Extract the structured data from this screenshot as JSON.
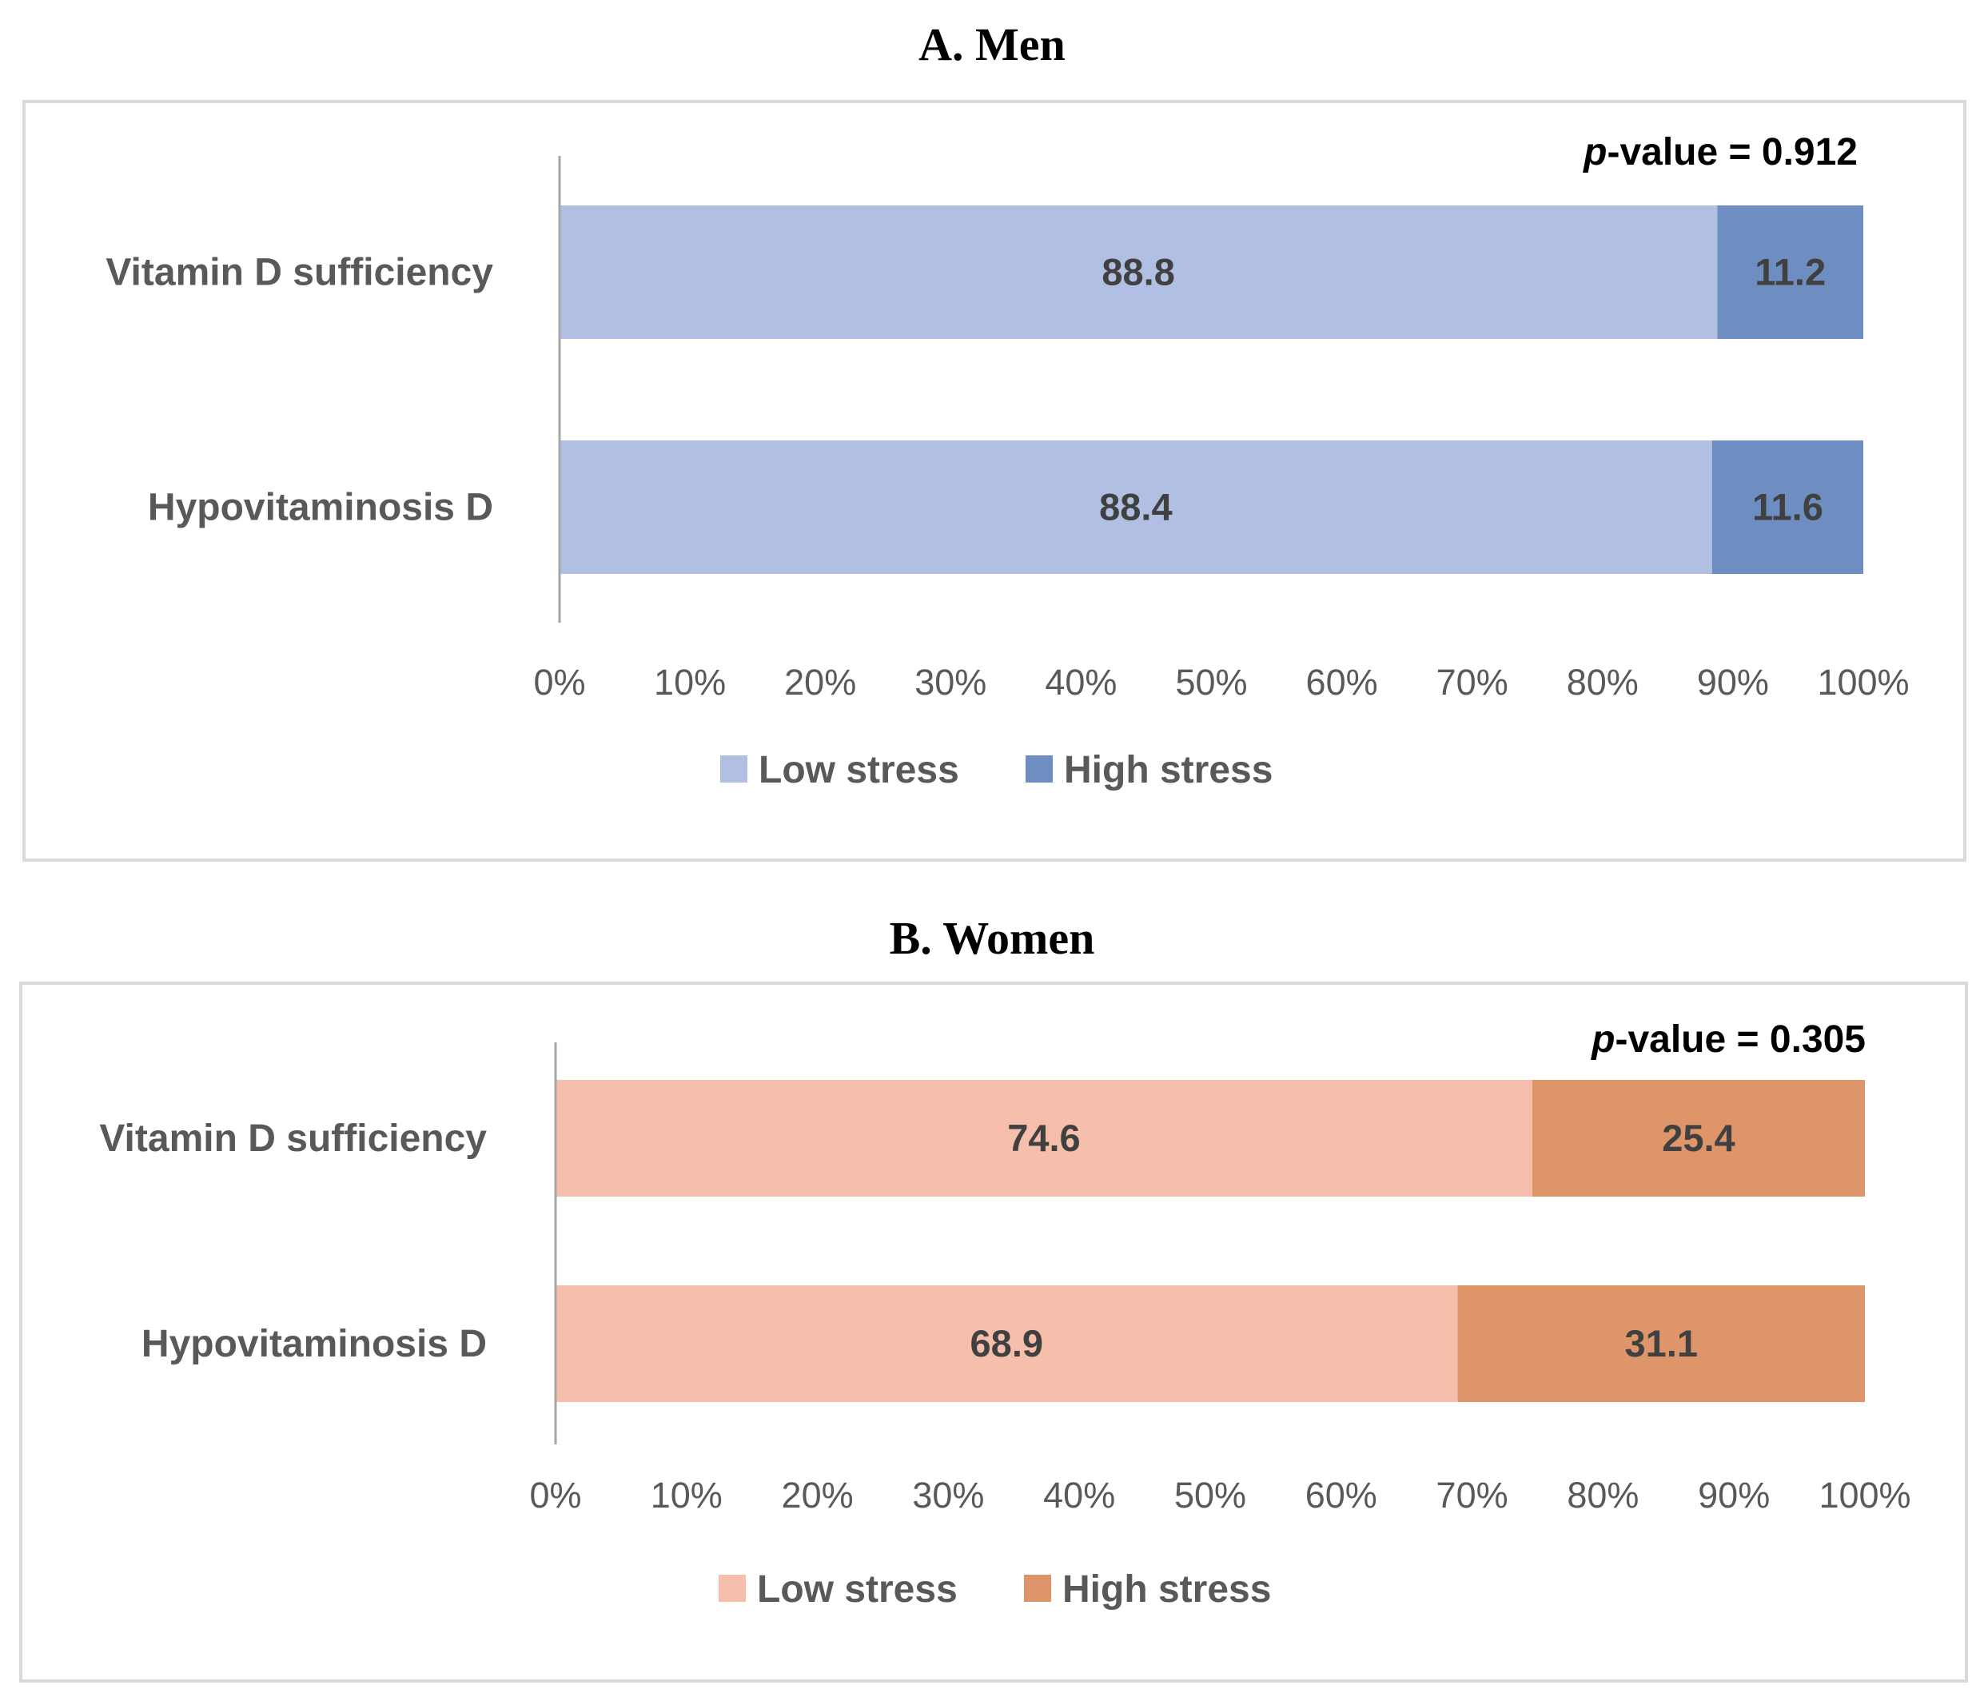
{
  "chart_data": [
    {
      "type": "bar",
      "orientation": "horizontal",
      "stacked": "percent",
      "title": "A. Men",
      "p_value_prefix": "p",
      "p_value_text": "-value = 0.912",
      "categories": [
        "Vitamin D sufficiency",
        "Hypovitaminosis D"
      ],
      "series": [
        {
          "name": "Low stress",
          "values": [
            88.8,
            88.4
          ],
          "labels": [
            "88.8",
            "88.4"
          ],
          "color": "#b0bfe2"
        },
        {
          "name": "High stress",
          "values": [
            11.2,
            11.6
          ],
          "labels": [
            "11.2",
            "11.6"
          ],
          "color": "#6e8dc1"
        }
      ],
      "xlim": [
        0,
        100
      ],
      "xticks": [
        "0%",
        "10%",
        "20%",
        "30%",
        "40%",
        "50%",
        "60%",
        "70%",
        "80%",
        "90%",
        "100%"
      ],
      "legend_position": "bottom"
    },
    {
      "type": "bar",
      "orientation": "horizontal",
      "stacked": "percent",
      "title": "B. Women",
      "p_value_prefix": "p",
      "p_value_text": "-value = 0.305",
      "categories": [
        "Vitamin D sufficiency",
        "Hypovitaminosis D"
      ],
      "series": [
        {
          "name": "Low stress",
          "values": [
            74.6,
            68.9
          ],
          "labels": [
            "74.6",
            "68.9"
          ],
          "color": "#f5bfab"
        },
        {
          "name": "High stress",
          "values": [
            25.4,
            31.1
          ],
          "labels": [
            "25.4",
            "31.1"
          ],
          "color": "#de956a"
        }
      ],
      "xlim": [
        0,
        100
      ],
      "xticks": [
        "0%",
        "10%",
        "20%",
        "30%",
        "40%",
        "50%",
        "60%",
        "70%",
        "80%",
        "90%",
        "100%"
      ],
      "legend_position": "bottom"
    }
  ]
}
